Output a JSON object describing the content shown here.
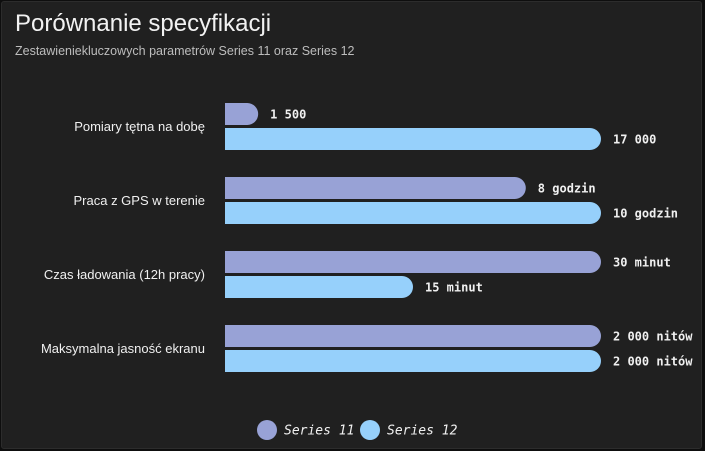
{
  "header": {
    "title": "Porównanie specyfikacji",
    "subtitle": "Zestawieniekluczowych parametrów Series 11 oraz Series 12"
  },
  "chart_data": {
    "type": "bar",
    "orientation": "horizontal",
    "categories": [
      "Pomiary tętna na dobę",
      "Praca z GPS w terenie",
      "Czas ładowania (12h pracy)",
      "Maksymalna jasność ekranu"
    ],
    "normalization": "each category scaled to its maximum value",
    "series": [
      {
        "name": "Series 11",
        "color": "#98a2d6",
        "values": [
          1500,
          8,
          30,
          2000
        ],
        "labels": [
          "1 500",
          "8 godzin",
          "30 minut",
          "2 000 nitów"
        ]
      },
      {
        "name": "Series 12",
        "color": "#96d0fb",
        "values": [
          17000,
          10,
          15,
          2000
        ],
        "labels": [
          "17 000",
          "10 godzin",
          "15 minut",
          "2 000 nitów"
        ]
      }
    ],
    "legend": {
      "position": "bottom-center"
    },
    "grid": false
  }
}
